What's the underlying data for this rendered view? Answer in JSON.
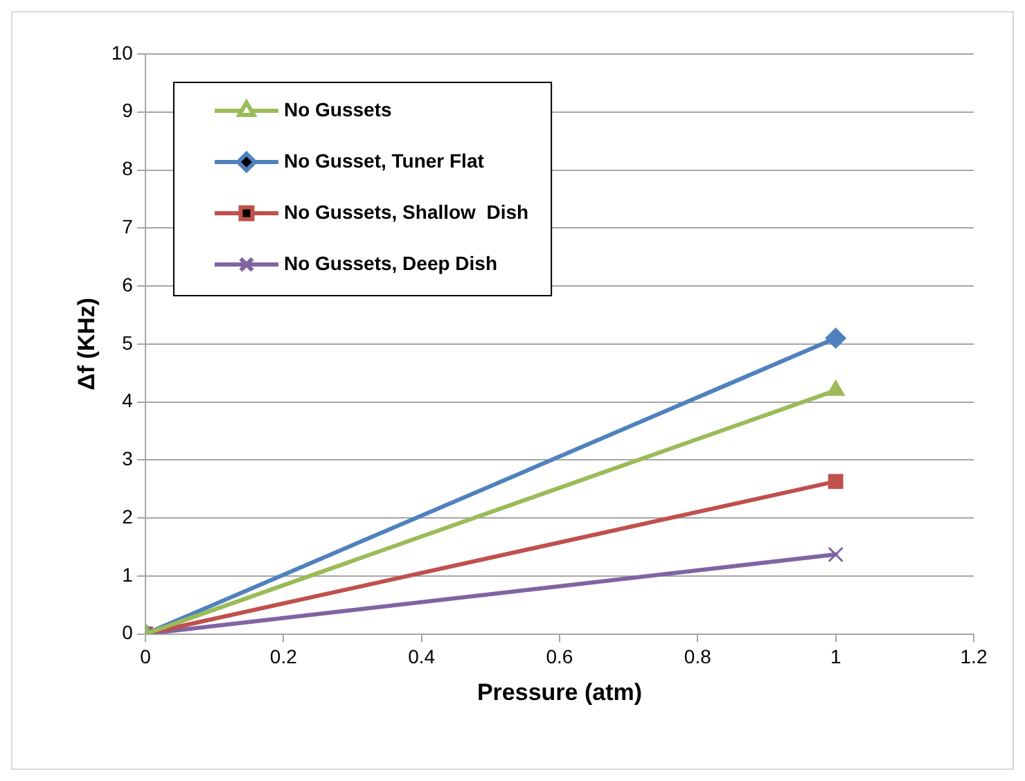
{
  "chart_data": {
    "type": "line",
    "xlabel": "Pressure (atm)",
    "ylabel": "Δf (KHz)",
    "x": [
      0,
      1
    ],
    "series": [
      {
        "name": "No Gussets",
        "color": "#9bbb59",
        "values": [
          0,
          4.2
        ],
        "marker": "triangle"
      },
      {
        "name": "No Gusset, Tuner Flat",
        "color": "#4f81bd",
        "values": [
          0,
          5.1
        ],
        "marker": "diamond"
      },
      {
        "name": "No Gussets, Shallow  Dish",
        "color": "#c0504d",
        "values": [
          0,
          2.63
        ],
        "marker": "square"
      },
      {
        "name": "No Gussets, Deep Dish",
        "color": "#8064a2",
        "values": [
          0,
          1.37
        ],
        "marker": "cross"
      }
    ],
    "xlim": [
      0,
      1.2
    ],
    "xticks": [
      0,
      0.2,
      0.4,
      0.6,
      0.8,
      1,
      1.2
    ],
    "ylim": [
      0,
      10
    ],
    "yticks": [
      0,
      1,
      2,
      3,
      4,
      5,
      6,
      7,
      8,
      9,
      10
    ],
    "grid": "y",
    "legend": "top left",
    "line_style": "solid"
  }
}
